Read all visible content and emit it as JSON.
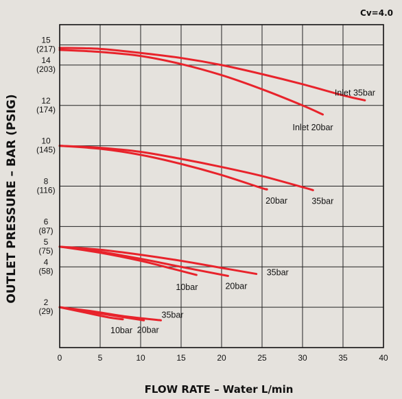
{
  "chart_data": {
    "type": "line",
    "annotation": "Cv=4.0",
    "xlabel": "FLOW RATE – Water L/min",
    "ylabel": "OUTLET PRESSURE – BAR (PSIG)",
    "xlim": [
      0,
      40
    ],
    "ylim": [
      0,
      16
    ],
    "x_ticks": [
      0,
      5,
      10,
      15,
      20,
      25,
      30,
      35,
      40
    ],
    "y_ticks": [
      {
        "value": 15,
        "bar": "15",
        "psi": "(217)"
      },
      {
        "value": 14,
        "bar": "14",
        "psi": "(203)"
      },
      {
        "value": 12,
        "bar": "12",
        "psi": "(174)"
      },
      {
        "value": 10,
        "bar": "10",
        "psi": "(145)"
      },
      {
        "value": 8,
        "bar": "8",
        "psi": "(116)"
      },
      {
        "value": 6,
        "bar": "6",
        "psi": "(87)"
      },
      {
        "value": 5,
        "bar": "5",
        "psi": "(75)"
      },
      {
        "value": 4,
        "bar": "4",
        "psi": "(58)"
      },
      {
        "value": 2,
        "bar": "2",
        "psi": "(29)"
      }
    ],
    "grid": true,
    "line_color": "#e8232b",
    "series": [
      {
        "name": "Inlet 35bar",
        "x": [
          0,
          5,
          10,
          15,
          20,
          25,
          30,
          35,
          37.7
        ],
        "y": [
          14.85,
          14.8,
          14.6,
          14.35,
          14.0,
          13.55,
          13.05,
          12.5,
          12.25
        ]
      },
      {
        "name": "Inlet 20bar",
        "x": [
          0,
          5,
          10,
          15,
          20,
          25,
          30,
          32.5
        ],
        "y": [
          14.75,
          14.65,
          14.45,
          14.05,
          13.5,
          12.8,
          12.0,
          11.55
        ]
      },
      {
        "name": "35bar",
        "x": [
          0,
          5,
          10,
          15,
          20,
          25,
          30,
          31.3
        ],
        "y": [
          10.0,
          9.9,
          9.7,
          9.35,
          8.95,
          8.5,
          7.95,
          7.8
        ]
      },
      {
        "name": "20bar",
        "x": [
          0,
          5,
          10,
          15,
          20,
          25,
          25.6
        ],
        "y": [
          10.0,
          9.85,
          9.55,
          9.1,
          8.55,
          7.9,
          7.85
        ]
      },
      {
        "name": "35bar",
        "x": [
          0,
          5,
          10,
          15,
          20,
          24.3
        ],
        "y": [
          5.0,
          4.85,
          4.6,
          4.3,
          3.95,
          3.65
        ]
      },
      {
        "name": "20bar",
        "x": [
          0,
          5,
          10,
          15,
          20.8
        ],
        "y": [
          5.0,
          4.75,
          4.4,
          4.0,
          3.55
        ]
      },
      {
        "name": "10bar",
        "x": [
          0,
          5,
          10,
          14,
          16.9
        ],
        "y": [
          5.0,
          4.7,
          4.3,
          3.9,
          3.6
        ]
      },
      {
        "name": "35bar",
        "x": [
          0,
          4,
          8,
          12.5
        ],
        "y": [
          2.0,
          1.8,
          1.55,
          1.35
        ]
      },
      {
        "name": "20bar",
        "x": [
          0,
          4,
          8,
          10.4
        ],
        "y": [
          2.0,
          1.75,
          1.5,
          1.35
        ]
      },
      {
        "name": "10bar",
        "x": [
          0,
          3,
          6,
          7.8
        ],
        "y": [
          2.0,
          1.75,
          1.5,
          1.4
        ]
      }
    ]
  }
}
